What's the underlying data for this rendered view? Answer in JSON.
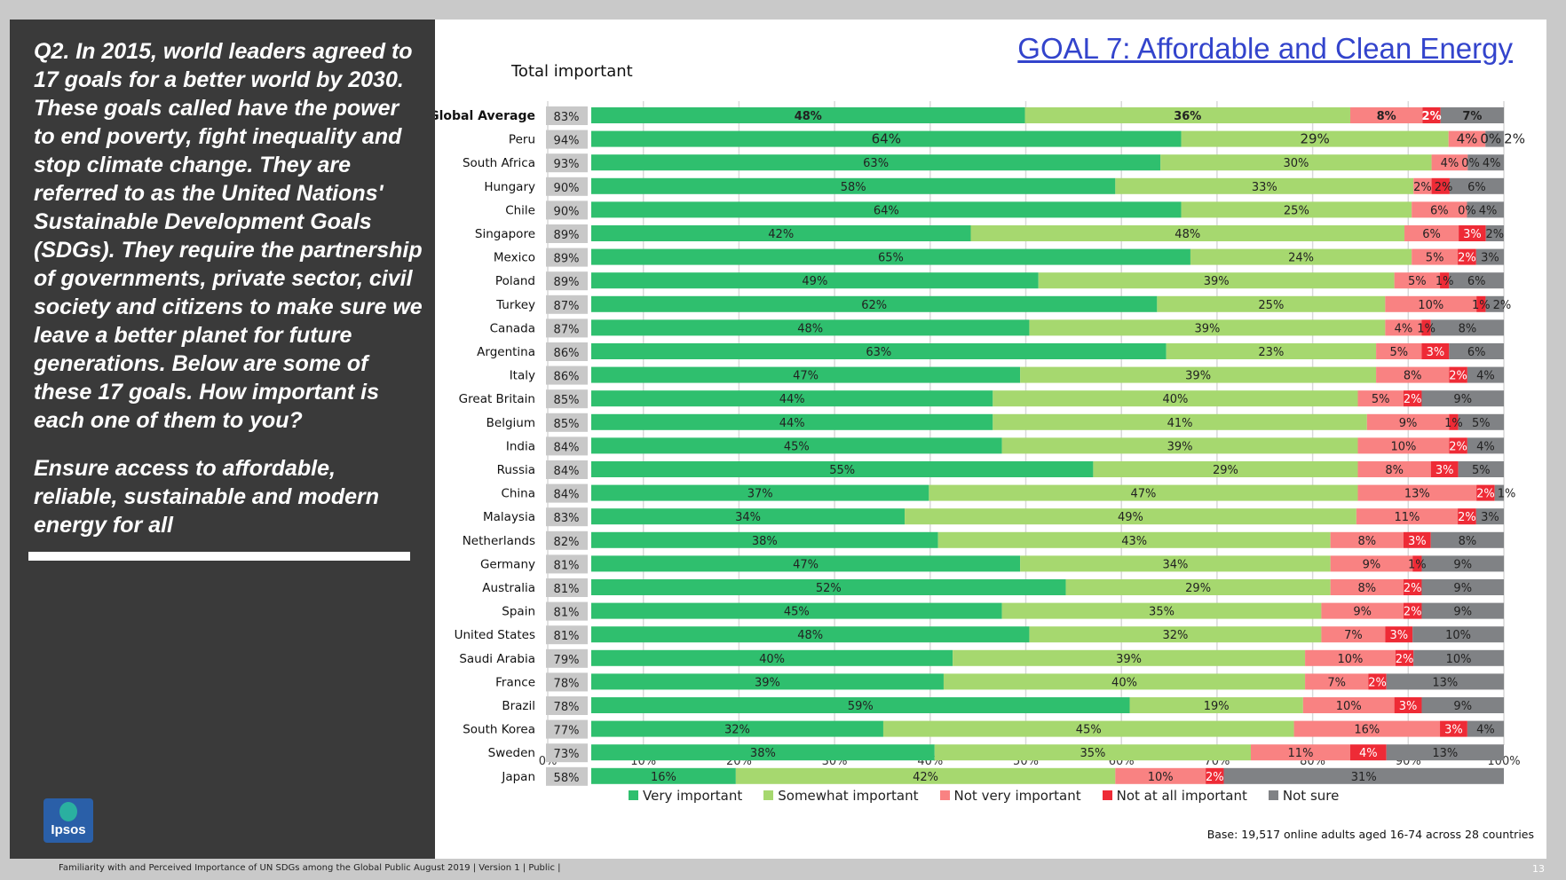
{
  "question": "Q2. In 2015, world leaders agreed to 17 goals for a better world by 2030. These goals called have the power to end poverty, fight inequality and stop climate change. They are referred to as the United Nations' Sustainable Development Goals (SDGs). They require the partnership of governments, private sector, civil society and citizens to make sure we leave a better planet for future generations. Below are some of these 17 goals. How important is each one of them to you?",
  "goal_statement": "Ensure access to affordable, reliable, sustainable and modern energy for all",
  "logo_text": "Ipsos",
  "footer": "Familiarity with and Perceived Importance of UN SDGs among the Global Public August 2019 | Version 1 | Public |",
  "page_number": "13",
  "chart_data": {
    "type": "bar",
    "title": "GOAL 7: Affordable and Clean Energy",
    "total_label": "Total important",
    "xlim": [
      0,
      100
    ],
    "x_ticks": [
      "0%",
      "10%",
      "20%",
      "30%",
      "40%",
      "50%",
      "60%",
      "70%",
      "80%",
      "90%",
      "100%"
    ],
    "legend_position": "bottom",
    "series": [
      {
        "name": "Very important",
        "color": "#2fbf6e"
      },
      {
        "name": "Somewhat important",
        "color": "#a6d86f"
      },
      {
        "name": "Not very important",
        "color": "#f98282"
      },
      {
        "name": "Not at all important",
        "color": "#ee2b36"
      },
      {
        "name": "Not sure",
        "color": "#808285"
      }
    ],
    "rows": [
      {
        "country": "Global Average",
        "total": "83%",
        "values": [
          48,
          36,
          8,
          2,
          7
        ]
      },
      {
        "country": "Peru",
        "total": "94%",
        "values": [
          64,
          29,
          4,
          0,
          2
        ]
      },
      {
        "country": "South Africa",
        "total": "93%",
        "values": [
          63,
          30,
          4,
          0,
          4
        ]
      },
      {
        "country": "Hungary",
        "total": "90%",
        "values": [
          58,
          33,
          2,
          2,
          6
        ]
      },
      {
        "country": "Chile",
        "total": "90%",
        "values": [
          64,
          25,
          6,
          0,
          4
        ]
      },
      {
        "country": "Singapore",
        "total": "89%",
        "values": [
          42,
          48,
          6,
          3,
          2
        ]
      },
      {
        "country": "Mexico",
        "total": "89%",
        "values": [
          65,
          24,
          5,
          2,
          3
        ]
      },
      {
        "country": "Poland",
        "total": "89%",
        "values": [
          49,
          39,
          5,
          1,
          6
        ]
      },
      {
        "country": "Turkey",
        "total": "87%",
        "values": [
          62,
          25,
          10,
          1,
          2
        ]
      },
      {
        "country": "Canada",
        "total": "87%",
        "values": [
          48,
          39,
          4,
          1,
          8
        ]
      },
      {
        "country": "Argentina",
        "total": "86%",
        "values": [
          63,
          23,
          5,
          3,
          6
        ]
      },
      {
        "country": "Italy",
        "total": "86%",
        "values": [
          47,
          39,
          8,
          2,
          4
        ]
      },
      {
        "country": "Great Britain",
        "total": "85%",
        "values": [
          44,
          40,
          5,
          2,
          9
        ]
      },
      {
        "country": "Belgium",
        "total": "85%",
        "values": [
          44,
          41,
          9,
          1,
          5
        ]
      },
      {
        "country": "India",
        "total": "84%",
        "values": [
          45,
          39,
          10,
          2,
          4
        ]
      },
      {
        "country": "Russia",
        "total": "84%",
        "values": [
          55,
          29,
          8,
          3,
          5
        ]
      },
      {
        "country": "China",
        "total": "84%",
        "values": [
          37,
          47,
          13,
          2,
          1
        ]
      },
      {
        "country": "Malaysia",
        "total": "83%",
        "values": [
          34,
          49,
          11,
          2,
          3
        ]
      },
      {
        "country": "Netherlands",
        "total": "82%",
        "values": [
          38,
          43,
          8,
          3,
          8
        ]
      },
      {
        "country": "Germany",
        "total": "81%",
        "values": [
          47,
          34,
          9,
          1,
          9
        ]
      },
      {
        "country": "Australia",
        "total": "81%",
        "values": [
          52,
          29,
          8,
          2,
          9
        ]
      },
      {
        "country": "Spain",
        "total": "81%",
        "values": [
          45,
          35,
          9,
          2,
          9
        ]
      },
      {
        "country": "United States",
        "total": "81%",
        "values": [
          48,
          32,
          7,
          3,
          10
        ]
      },
      {
        "country": "Saudi Arabia",
        "total": "79%",
        "values": [
          40,
          39,
          10,
          2,
          10
        ]
      },
      {
        "country": "France",
        "total": "78%",
        "values": [
          39,
          40,
          7,
          2,
          13
        ]
      },
      {
        "country": "Brazil",
        "total": "78%",
        "values": [
          59,
          19,
          10,
          3,
          9
        ]
      },
      {
        "country": "South Korea",
        "total": "77%",
        "values": [
          32,
          45,
          16,
          3,
          4
        ]
      },
      {
        "country": "Sweden",
        "total": "73%",
        "values": [
          38,
          35,
          11,
          4,
          13
        ]
      },
      {
        "country": "Japan",
        "total": "58%",
        "values": [
          16,
          42,
          10,
          2,
          31
        ]
      }
    ],
    "base_note": "Base: 19,517 online adults aged 16-74 across 28 countries"
  }
}
